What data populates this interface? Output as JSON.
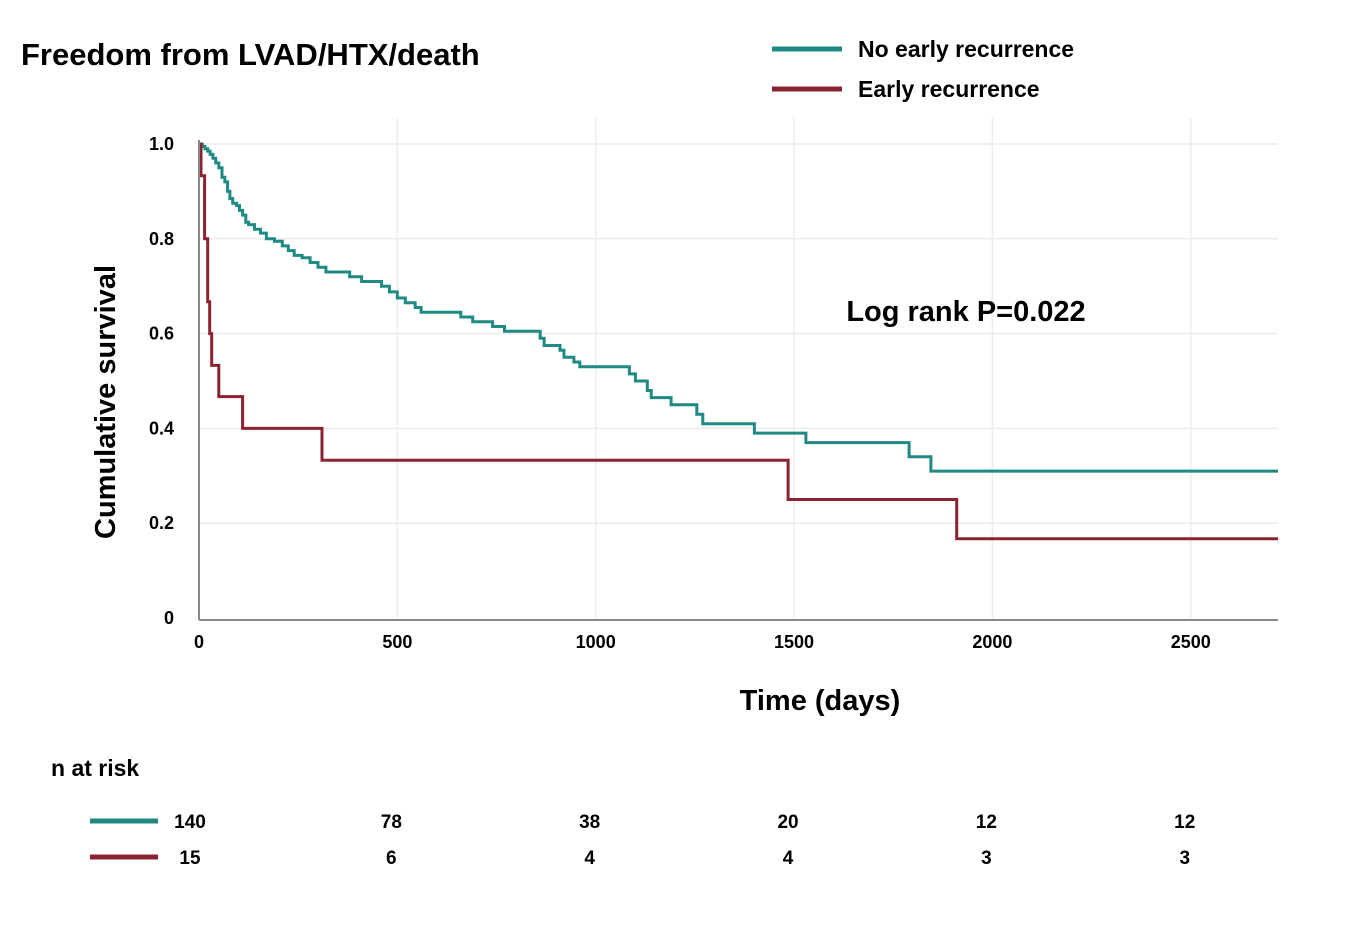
{
  "chart_data": {
    "type": "line",
    "subtype": "kaplan-meier",
    "title": "Freedom from LVAD/HTX/death",
    "xlabel": "Time (days)",
    "ylabel": "Cumulative survival",
    "xlim": [
      0,
      2720
    ],
    "ylim": [
      0,
      1.0
    ],
    "x_ticks": [
      0,
      500,
      1000,
      1500,
      2000,
      2500
    ],
    "x_tick_labels": [
      "0",
      "500",
      "1000",
      "1500",
      "2000",
      "2500"
    ],
    "y_ticks": [
      0,
      0.2,
      0.4,
      0.6,
      0.8,
      1.0
    ],
    "y_tick_labels": [
      "0",
      "0.2",
      "0.4",
      "0.6",
      "0.8",
      "1.0"
    ],
    "grid": true,
    "legend_position": "top-right",
    "annotation": "Log rank P=0.022",
    "series": [
      {
        "name": "No early recurrence",
        "color": "#1f8a84",
        "steps": [
          [
            0,
            1.0
          ],
          [
            8,
            0.995
          ],
          [
            15,
            0.99
          ],
          [
            22,
            0.985
          ],
          [
            28,
            0.978
          ],
          [
            35,
            0.97
          ],
          [
            42,
            0.96
          ],
          [
            50,
            0.95
          ],
          [
            58,
            0.93
          ],
          [
            65,
            0.92
          ],
          [
            72,
            0.9
          ],
          [
            78,
            0.885
          ],
          [
            85,
            0.875
          ],
          [
            95,
            0.87
          ],
          [
            102,
            0.86
          ],
          [
            110,
            0.85
          ],
          [
            118,
            0.835
          ],
          [
            125,
            0.83
          ],
          [
            140,
            0.82
          ],
          [
            155,
            0.812
          ],
          [
            170,
            0.8
          ],
          [
            190,
            0.795
          ],
          [
            210,
            0.785
          ],
          [
            225,
            0.775
          ],
          [
            240,
            0.765
          ],
          [
            260,
            0.76
          ],
          [
            280,
            0.75
          ],
          [
            300,
            0.74
          ],
          [
            320,
            0.73
          ],
          [
            380,
            0.72
          ],
          [
            410,
            0.71
          ],
          [
            460,
            0.7
          ],
          [
            480,
            0.688
          ],
          [
            500,
            0.675
          ],
          [
            520,
            0.665
          ],
          [
            545,
            0.655
          ],
          [
            560,
            0.645
          ],
          [
            660,
            0.635
          ],
          [
            690,
            0.625
          ],
          [
            740,
            0.615
          ],
          [
            770,
            0.605
          ],
          [
            860,
            0.59
          ],
          [
            870,
            0.575
          ],
          [
            910,
            0.565
          ],
          [
            920,
            0.55
          ],
          [
            945,
            0.54
          ],
          [
            960,
            0.53
          ],
          [
            1085,
            0.515
          ],
          [
            1100,
            0.5
          ],
          [
            1130,
            0.48
          ],
          [
            1140,
            0.465
          ],
          [
            1190,
            0.45
          ],
          [
            1255,
            0.43
          ],
          [
            1270,
            0.41
          ],
          [
            1400,
            0.39
          ],
          [
            1530,
            0.37
          ],
          [
            1790,
            0.34
          ],
          [
            1845,
            0.31
          ],
          [
            2720,
            0.31
          ]
        ]
      },
      {
        "name": "Early recurrence",
        "color": "#8b2332",
        "steps": [
          [
            0,
            1.0
          ],
          [
            5,
            0.933
          ],
          [
            14,
            0.8
          ],
          [
            22,
            0.667
          ],
          [
            27,
            0.6
          ],
          [
            32,
            0.533
          ],
          [
            50,
            0.467
          ],
          [
            110,
            0.4
          ],
          [
            310,
            0.333
          ],
          [
            1485,
            0.25
          ],
          [
            1910,
            0.167
          ],
          [
            2720,
            0.167
          ]
        ]
      }
    ]
  },
  "risk_table": {
    "title": "n at risk",
    "rows": [
      {
        "color": "#1f8a84",
        "values": [
          "140",
          "78",
          "38",
          "20",
          "12",
          "12"
        ]
      },
      {
        "color": "#8b2332",
        "values": [
          "15",
          "6",
          "4",
          "4",
          "3",
          "3"
        ]
      }
    ]
  }
}
